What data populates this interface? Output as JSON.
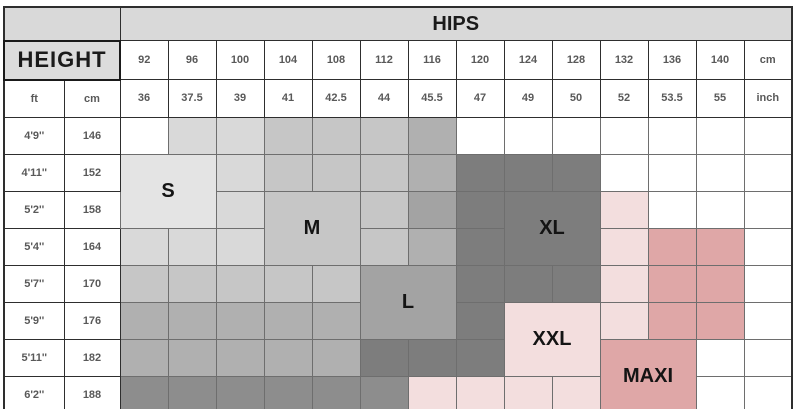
{
  "palette": {
    "W": "#ffffff",
    "G1": "#e4e4e4",
    "G2": "#d9d9d9",
    "G3": "#c6c6c6",
    "G4": "#b0b0b0",
    "G5": "#a3a3a3",
    "G6": "#8d8d8d",
    "G7": "#7d7d7d",
    "P1": "#f3dede",
    "P2": "#dfa7a7"
  },
  "chart_data": {
    "type": "table",
    "title": "HIPS",
    "row_header": "HEIGHT",
    "units": {
      "ft": "ft",
      "cm": "cm"
    },
    "hips_cm": [
      "92",
      "96",
      "100",
      "104",
      "108",
      "112",
      "116",
      "120",
      "124",
      "128",
      "132",
      "136",
      "140",
      "cm"
    ],
    "hips_inch": [
      "36",
      "37.5",
      "39",
      "41",
      "42.5",
      "44",
      "45.5",
      "47",
      "49",
      "50",
      "52",
      "53.5",
      "55",
      "inch"
    ],
    "height_rows": [
      {
        "ft": "4'9''",
        "cm": "146"
      },
      {
        "ft": "4'11''",
        "cm": "152"
      },
      {
        "ft": "5'2''",
        "cm": "158"
      },
      {
        "ft": "5'4''",
        "cm": "164"
      },
      {
        "ft": "5'7''",
        "cm": "170"
      },
      {
        "ft": "5'9''",
        "cm": "176"
      },
      {
        "ft": "5'11''",
        "cm": "182"
      },
      {
        "ft": "6'2''",
        "cm": "188"
      }
    ],
    "sizes": [
      "S",
      "M",
      "L",
      "XL",
      "XXL",
      "MAXI"
    ],
    "grid": [
      [
        "W",
        "G2",
        "G2",
        "G3",
        "G3",
        "G3",
        "G4",
        "W",
        "W",
        "W",
        "W",
        "W",
        "W",
        "W"
      ],
      [
        {
          "s": "G1",
          "l": "S",
          "cs": 2,
          "rs": 2
        },
        "G2",
        "G3",
        "G3",
        "G3",
        "G4",
        "G7",
        "G7",
        "G7",
        "W",
        "W",
        "W",
        "W"
      ],
      [
        "G2",
        {
          "s": "G3",
          "l": "M",
          "cs": 2,
          "rs": 2
        },
        "G3",
        "G5",
        "G7",
        {
          "s": "G7",
          "l": "XL",
          "cs": 2,
          "rs": 2
        },
        "P1",
        "W",
        "W",
        "W"
      ],
      [
        "G2",
        "G2",
        "G2",
        "G3",
        "G4",
        "G7",
        "P1",
        "P2",
        "P2",
        "W"
      ],
      [
        "G3",
        "G3",
        "G3",
        "G3",
        "G3",
        {
          "s": "G5",
          "l": "L",
          "cs": 2,
          "rs": 2
        },
        "G7",
        "G7",
        "G7",
        "P1",
        "P2",
        "P2",
        "W"
      ],
      [
        "G4",
        "G4",
        "G4",
        "G4",
        "G4",
        "G7",
        {
          "s": "P1",
          "l": "XXL",
          "cs": 2,
          "rs": 2
        },
        "P1",
        "P2",
        "P2",
        "W"
      ],
      [
        "G4",
        "G4",
        "G4",
        "G4",
        "G4",
        "G7",
        "G7",
        "G7",
        {
          "s": "P2",
          "l": "MAXI",
          "cs": 2,
          "rs": 2
        },
        "W",
        "W"
      ],
      [
        "G6",
        "G6",
        "G6",
        "G6",
        "G6",
        "G6",
        "P1",
        "P1",
        "P1",
        "P1",
        "W",
        "W"
      ]
    ]
  }
}
